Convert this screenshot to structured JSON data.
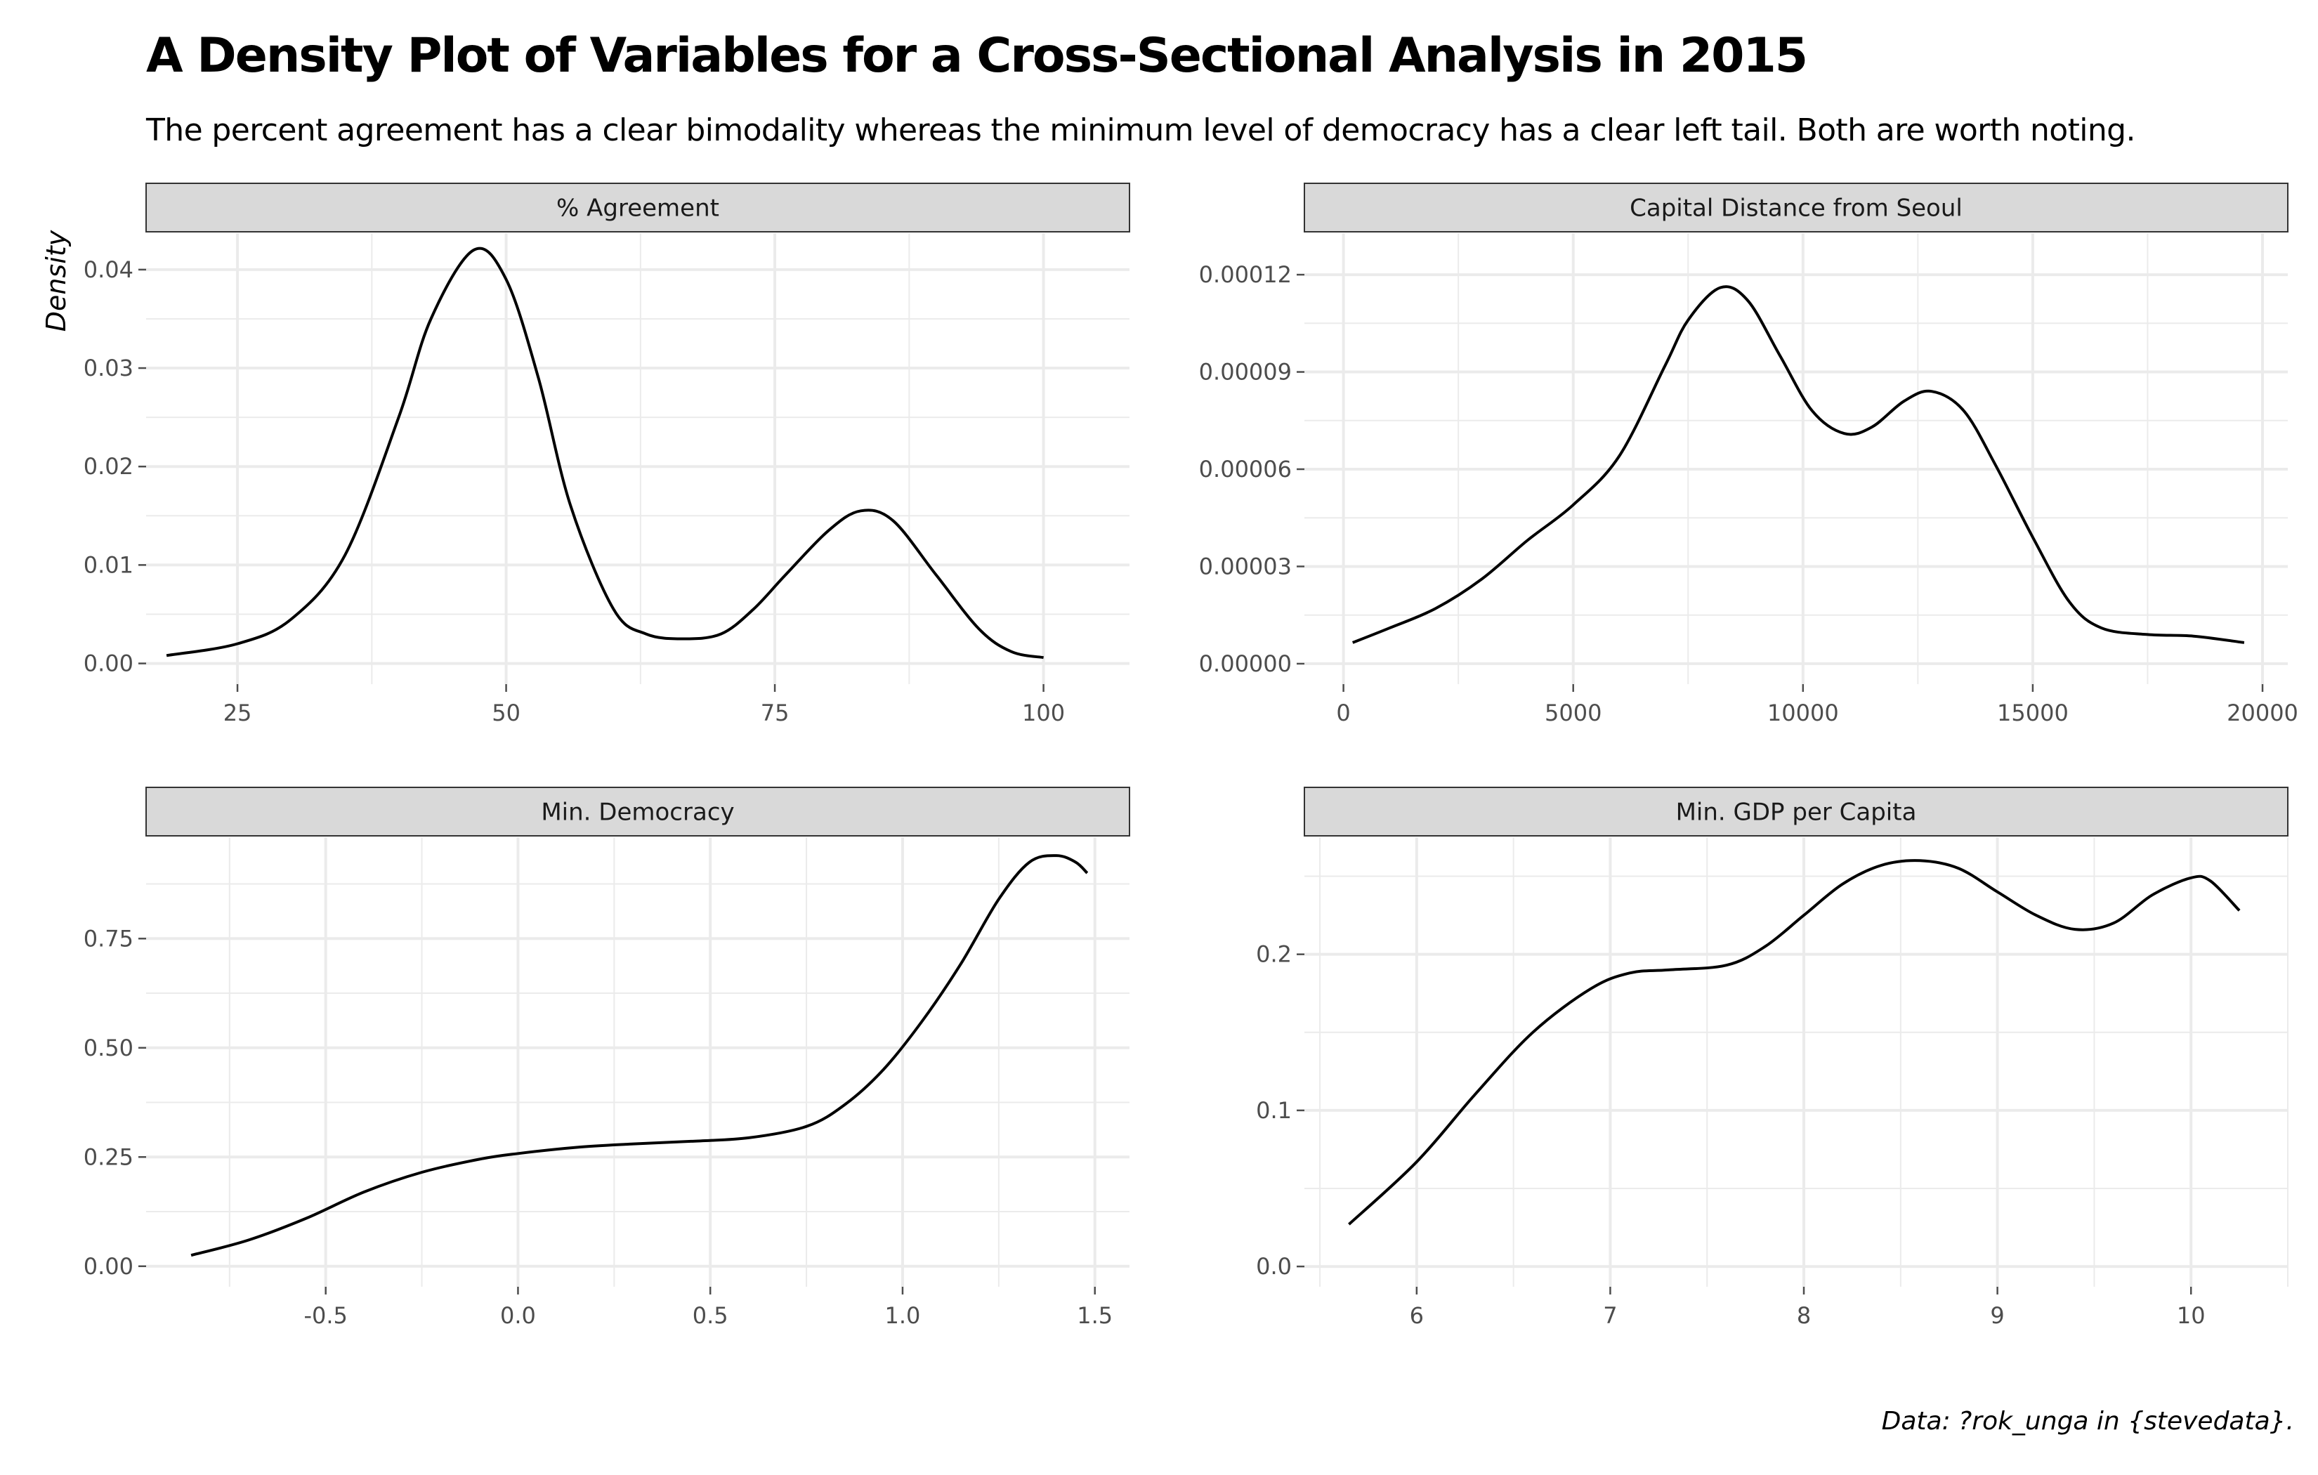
{
  "title": "A Density Plot of Variables for a Cross-Sectional Analysis in 2015",
  "subtitle": "The percent agreement has a clear bimodality whereas the minimum level of democracy has a clear left tail. Both are worth noting.",
  "caption": "Data: ?rok_unga in {stevedata}.",
  "ylabel": "Density",
  "colors": {
    "line": "#000000",
    "strip_fill": "#d9d9d9",
    "strip_border": "#333333",
    "grid": "#ebebeb",
    "tick": "#4d4d4d"
  },
  "chart_data": [
    {
      "type": "line",
      "panel": "% Agreement",
      "xlim": [
        16.5,
        108
      ],
      "ylim": [
        -0.0021,
        0.0437
      ],
      "x_ticks": [
        25,
        50,
        75,
        100
      ],
      "x_tick_labels": [
        "25",
        "50",
        "75",
        "100"
      ],
      "y_ticks": [
        0,
        0.01,
        0.02,
        0.03,
        0.04
      ],
      "y_tick_labels": [
        "0.00",
        "0.01",
        "0.02",
        "0.03",
        "0.04"
      ],
      "x": [
        18.4,
        25,
        30,
        35,
        40,
        43,
        47,
        50,
        53,
        56,
        60,
        63,
        66.5,
        70,
        73,
        76,
        80,
        83,
        86,
        90,
        94,
        97,
        100
      ],
      "y": [
        0.0008,
        0.002,
        0.0045,
        0.011,
        0.025,
        0.035,
        0.042,
        0.039,
        0.029,
        0.016,
        0.0055,
        0.003,
        0.0025,
        0.003,
        0.0055,
        0.009,
        0.0135,
        0.0155,
        0.0145,
        0.009,
        0.0035,
        0.0012,
        0.0006
      ]
    },
    {
      "type": "line",
      "panel": "Capital Distance from Seoul",
      "xlim": [
        -850,
        20550
      ],
      "ylim": [
        -6.3e-06,
        0.0001328
      ],
      "x_ticks": [
        0,
        5000,
        10000,
        15000,
        20000
      ],
      "x_tick_labels": [
        "0",
        "5000",
        "10000",
        "15000",
        "20000"
      ],
      "y_ticks": [
        0,
        3e-05,
        6e-05,
        9e-05,
        0.00012
      ],
      "y_tick_labels": [
        "0.00000",
        "0.00003",
        "0.00006",
        "0.00009",
        "0.00012"
      ],
      "x": [
        200,
        1000,
        2000,
        3000,
        4000,
        5000,
        6000,
        7000,
        7500,
        8200,
        8800,
        9500,
        10200,
        10900,
        11500,
        12200,
        12800,
        13500,
        14200,
        15000,
        15800,
        16500,
        17500,
        18500,
        19600
      ],
      "y": [
        6.5e-06,
        1.1e-05,
        1.7e-05,
        2.6e-05,
        3.8e-05,
        4.9e-05,
        6.4e-05,
        9.2e-05,
        0.000106,
        0.000116,
        0.000112,
        9.5e-05,
        7.8e-05,
        7.1e-05,
        7.3e-05,
        8.1e-05,
        8.4e-05,
        7.8e-05,
        6.1e-05,
        3.9e-05,
        1.9e-05,
        1.1e-05,
        9e-06,
        8.5e-06,
        6.5e-06
      ]
    },
    {
      "type": "line",
      "panel": "Min. Democracy",
      "xlim": [
        -0.967,
        1.59
      ],
      "ylim": [
        -0.047,
        0.982
      ],
      "x_ticks": [
        -0.5,
        0,
        0.5,
        1,
        1.5
      ],
      "x_tick_labels": [
        "-0.5",
        "0.0",
        "0.5",
        "1.0",
        "1.5"
      ],
      "y_ticks": [
        0,
        0.25,
        0.5,
        0.75
      ],
      "y_tick_labels": [
        "0.00",
        "0.25",
        "0.50",
        "0.75"
      ],
      "x": [
        -0.85,
        -0.7,
        -0.55,
        -0.4,
        -0.25,
        -0.1,
        0,
        0.15,
        0.3,
        0.45,
        0.6,
        0.75,
        0.85,
        0.95,
        1.05,
        1.15,
        1.25,
        1.33,
        1.4,
        1.45,
        1.48
      ],
      "y": [
        0.025,
        0.06,
        0.11,
        0.17,
        0.215,
        0.245,
        0.258,
        0.272,
        0.28,
        0.286,
        0.294,
        0.32,
        0.37,
        0.45,
        0.56,
        0.69,
        0.84,
        0.925,
        0.94,
        0.925,
        0.9
      ]
    },
    {
      "type": "line",
      "panel": "Min. GDP per Capita",
      "xlim": [
        5.42,
        10.5
      ],
      "ylim": [
        -0.013,
        0.275
      ],
      "x_ticks": [
        6,
        7,
        8,
        9,
        10
      ],
      "x_tick_labels": [
        "6",
        "7",
        "8",
        "9",
        "10"
      ],
      "y_ticks": [
        0,
        0.1,
        0.2
      ],
      "y_tick_labels": [
        "0.0",
        "0.1",
        "0.2"
      ],
      "x": [
        5.65,
        6,
        6.3,
        6.6,
        6.9,
        7.1,
        7.3,
        7.6,
        7.8,
        8,
        8.2,
        8.4,
        8.6,
        8.8,
        9,
        9.2,
        9.4,
        9.6,
        9.8,
        10,
        10.1,
        10.25
      ],
      "y": [
        0.027,
        0.067,
        0.11,
        0.15,
        0.178,
        0.188,
        0.19,
        0.193,
        0.205,
        0.225,
        0.245,
        0.257,
        0.26,
        0.255,
        0.24,
        0.225,
        0.216,
        0.22,
        0.238,
        0.249,
        0.247,
        0.228
      ]
    }
  ]
}
